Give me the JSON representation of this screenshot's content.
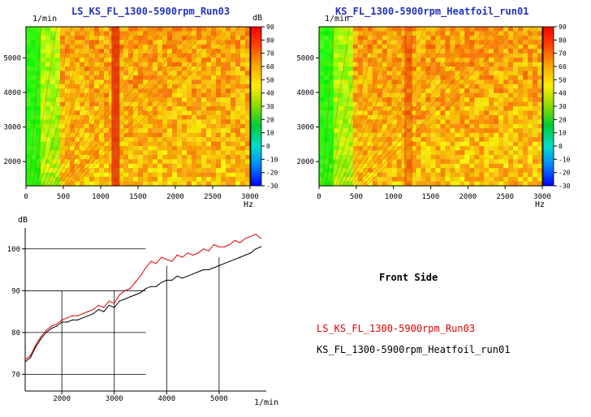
{
  "chart_data": [
    {
      "type": "heatmap",
      "title": "LS_KS_FL_1300-5900rpm_Run03",
      "ylabel": "1/min",
      "xlabel": "Hz",
      "colorbar_label": "dB",
      "xlim": [
        0,
        3000
      ],
      "ylim": [
        1300,
        5900
      ],
      "xticks": [
        "0",
        "500",
        "1000",
        "1500",
        "2000",
        "2500",
        "3000"
      ],
      "yticks": [
        "2000",
        "3000",
        "4000",
        "5000"
      ],
      "colorbar_ticks": [
        "90",
        "80",
        "70",
        "60",
        "50",
        "40",
        "30",
        "20",
        "10",
        "0",
        "-10",
        "-20",
        "-30"
      ],
      "colorbar_range": [
        -30,
        90
      ],
      "feature_hz": 1200
    },
    {
      "type": "heatmap",
      "title": "KS_FL_1300-5900rpm_Heatfoil_run01",
      "ylabel": "1/min",
      "xlabel": "Hz",
      "colorbar_label": "dB",
      "xlim": [
        0,
        3000
      ],
      "ylim": [
        1300,
        5900
      ],
      "xticks": [
        "0",
        "500",
        "1000",
        "1500",
        "2000",
        "2500",
        "3000"
      ],
      "yticks": [
        "2000",
        "3000",
        "4000",
        "5000"
      ],
      "colorbar_ticks": [
        "90",
        "80",
        "70",
        "60",
        "50",
        "40",
        "30",
        "20",
        "10",
        "0",
        "-10",
        "-20",
        "-30"
      ],
      "colorbar_range": [
        -30,
        90
      ],
      "feature_hz": 1200
    },
    {
      "type": "line",
      "ylabel": "dB",
      "xlabel": "1/min",
      "xlim": [
        1300,
        5900
      ],
      "ylim": [
        66,
        105
      ],
      "xticks": [
        "2000",
        "3000",
        "4000",
        "5000"
      ],
      "yticks": [
        "70",
        "80",
        "90",
        "100"
      ],
      "x": [
        1300,
        1400,
        1500,
        1600,
        1700,
        1800,
        1900,
        2000,
        2100,
        2200,
        2300,
        2400,
        2500,
        2600,
        2700,
        2800,
        2900,
        3000,
        3100,
        3200,
        3300,
        3400,
        3500,
        3600,
        3700,
        3800,
        3900,
        4000,
        4100,
        4200,
        4300,
        4400,
        4500,
        4600,
        4700,
        4800,
        4900,
        5000,
        5100,
        5200,
        5300,
        5400,
        5500,
        5600,
        5700,
        5800
      ],
      "series": [
        {
          "name": "LS_KS_FL_1300-5900rpm_Run03",
          "color": "#e00000",
          "values": [
            73.5,
            74.5,
            77,
            79,
            80.5,
            81.5,
            82,
            83,
            83.5,
            84,
            84,
            84.5,
            85,
            85.5,
            86.5,
            86,
            87.5,
            87,
            89,
            90,
            90.5,
            92,
            93.5,
            95.5,
            97,
            96.5,
            98,
            97.5,
            97,
            98.5,
            98,
            99,
            98.5,
            99,
            100,
            99.5,
            101,
            100.5,
            100.5,
            101,
            102,
            101.5,
            102.5,
            103,
            103.5,
            102.5
          ]
        },
        {
          "name": "KS_FL_1300-5900rpm_Heatfoil_run01",
          "color": "#000000",
          "values": [
            73,
            74,
            76.5,
            78.5,
            80,
            81,
            81.5,
            82.5,
            82.5,
            83,
            83,
            83.5,
            84,
            84.5,
            85.5,
            85,
            86.5,
            86,
            87.5,
            88,
            88.5,
            89,
            89.5,
            90.5,
            91,
            91,
            92,
            92.5,
            92.5,
            93.5,
            93,
            93.5,
            94,
            94.5,
            95,
            95,
            95.5,
            96,
            96.5,
            97,
            97.5,
            98,
            98.5,
            99,
            100,
            100.5
          ]
        }
      ],
      "grid": true
    }
  ],
  "side_label": "Front Side"
}
